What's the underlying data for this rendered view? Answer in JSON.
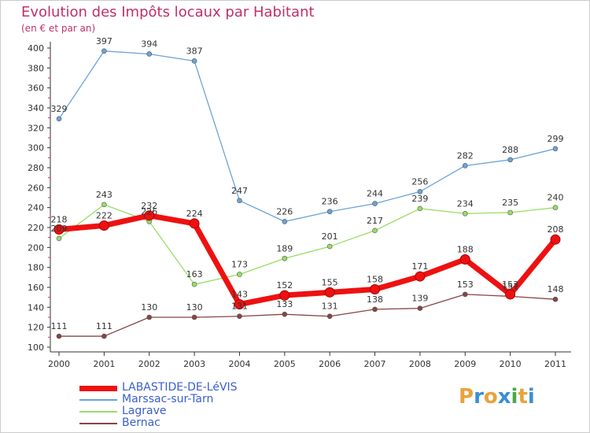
{
  "header": {
    "title": "Evolution des Impôts locaux par Habitant",
    "subtitle": "(en € et par an)"
  },
  "colors": {
    "title": "#c0306a",
    "axis": "#333333",
    "legend_text": "#3a5fcd"
  },
  "logo": {
    "letters": [
      "P",
      "r",
      "o",
      "x",
      "i",
      "t",
      "i"
    ],
    "colors": [
      "#e8a33c",
      "#3a8fd6",
      "#e8a33c",
      "#3a8fd6",
      "#4aa84a",
      "#e8a33c",
      "#3a8fd6"
    ]
  },
  "chart_data": {
    "type": "line",
    "title": "Evolution des Impôts locaux par Habitant",
    "subtitle": "(en € et par an)",
    "categories": [
      "2000",
      "2001",
      "2002",
      "2003",
      "2004",
      "2005",
      "2006",
      "2007",
      "2008",
      "2009",
      "2010",
      "2011"
    ],
    "ylim": [
      100,
      400
    ],
    "yticks": [
      100,
      120,
      140,
      160,
      180,
      200,
      220,
      240,
      260,
      280,
      300,
      320,
      340,
      360,
      380,
      400
    ],
    "grid": false,
    "legend_position": "bottom-left",
    "series": [
      {
        "name": "LABASTIDE-DE-LéVIS",
        "color": "#ee1111",
        "values": [
          218,
          222,
          232,
          224,
          143,
          152,
          155,
          158,
          171,
          188,
          153,
          208
        ]
      },
      {
        "name": "Marssac-sur-Tarn",
        "color": "#6aa4d8",
        "values": [
          329,
          397,
          394,
          387,
          247,
          226,
          236,
          244,
          256,
          282,
          288,
          299
        ]
      },
      {
        "name": "Lagrave",
        "color": "#99dd66",
        "values": [
          209,
          243,
          226,
          163,
          173,
          189,
          201,
          217,
          239,
          234,
          235,
          240
        ]
      },
      {
        "name": "Bernac",
        "color": "#884444",
        "values": [
          111,
          111,
          130,
          130,
          131,
          133,
          131,
          138,
          139,
          153,
          151,
          148
        ]
      }
    ]
  }
}
